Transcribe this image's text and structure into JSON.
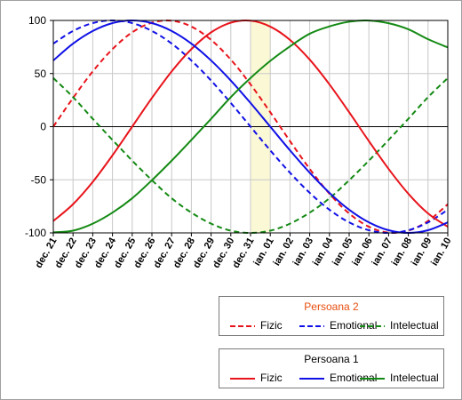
{
  "chart_data": {
    "type": "line",
    "ylim": [
      -100,
      100
    ],
    "yticks": [
      -100,
      -50,
      0,
      50,
      100
    ],
    "categories": [
      "dec. 21",
      "dec. 22",
      "dec. 23",
      "dec. 24",
      "dec. 25",
      "dec. 26",
      "dec. 27",
      "dec. 28",
      "dec. 29",
      "dec. 30",
      "dec. 31",
      "ian. 01",
      "ian. 02",
      "ian. 03",
      "ian. 04",
      "ian. 05",
      "ian. 06",
      "ian. 07",
      "ian. 08",
      "ian. 09",
      "ian. 10"
    ],
    "highlight_category": "dec. 31",
    "highlight_color": "#fbf8d6",
    "grid": true,
    "series": [
      {
        "group": "Persoana 1",
        "name": "Fizic",
        "color": "#e8141b",
        "dash": "solid",
        "values": [
          -88.8,
          -73.0,
          -52.0,
          -27.0,
          0.0,
          27.0,
          52.0,
          73.0,
          88.8,
          97.9,
          99.8,
          94.2,
          81.7,
          63.1,
          39.8,
          13.6,
          -13.6,
          -39.8,
          -63.1,
          -81.7,
          -94.2
        ]
      },
      {
        "group": "Persoana 1",
        "name": "Emotional",
        "color": "#1010e6",
        "dash": "solid",
        "values": [
          62.3,
          78.2,
          90.1,
          97.5,
          100.0,
          97.5,
          90.1,
          78.2,
          62.3,
          43.4,
          22.3,
          0.0,
          -22.3,
          -43.4,
          -62.3,
          -78.2,
          -90.1,
          -97.5,
          -100.0,
          -97.5,
          -90.1
        ]
      },
      {
        "group": "Persoana 1",
        "name": "Intelectual",
        "color": "#148a14",
        "dash": "solid",
        "values": [
          -99.5,
          -97.9,
          -91.3,
          -80.9,
          -67.4,
          -50.4,
          -32.0,
          -12.5,
          7.4,
          27.8,
          45.8,
          61.9,
          75.6,
          87.5,
          94.4,
          98.8,
          99.9,
          97.4,
          91.7,
          82.3,
          74.6
        ]
      },
      {
        "group": "Persoana 2",
        "name": "Fizic",
        "color": "#e8141b",
        "dash": "dashed",
        "values": [
          0.0,
          27.0,
          52.0,
          73.0,
          88.8,
          97.9,
          99.8,
          94.2,
          81.7,
          63.1,
          39.8,
          13.6,
          -13.6,
          -39.8,
          -63.1,
          -81.7,
          -94.2,
          -99.8,
          -97.9,
          -88.8,
          -73.0
        ]
      },
      {
        "group": "Persoana 2",
        "name": "Emotional",
        "color": "#1010e6",
        "dash": "dashed",
        "values": [
          78.2,
          90.1,
          97.5,
          100.0,
          97.5,
          90.1,
          78.2,
          62.3,
          43.4,
          22.3,
          0.0,
          -22.3,
          -43.4,
          -62.3,
          -78.2,
          -90.1,
          -97.5,
          -100.0,
          -97.5,
          -90.1,
          -78.2
        ]
      },
      {
        "group": "Persoana 2",
        "name": "Intelectual",
        "color": "#148a14",
        "dash": "dashed",
        "values": [
          45.8,
          27.8,
          7.4,
          -12.5,
          -32.0,
          -50.4,
          -67.4,
          -80.9,
          -91.3,
          -97.9,
          -100.0,
          -97.9,
          -91.3,
          -80.9,
          -67.4,
          -50.4,
          -32.0,
          -12.5,
          7.4,
          27.8,
          45.8
        ]
      }
    ]
  },
  "legends": [
    {
      "title": "Persoana 2",
      "title_color": "#e84e0f",
      "items": [
        "Fizic",
        "Emotional",
        "Intelectual"
      ]
    },
    {
      "title": "Persoana 1",
      "title_color": "#000000",
      "items": [
        "Fizic",
        "Emotional",
        "Intelectual"
      ]
    }
  ]
}
